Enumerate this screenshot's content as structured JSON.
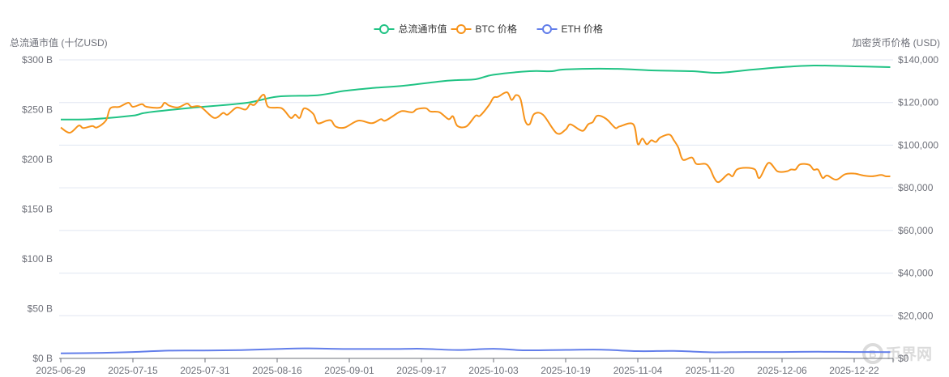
{
  "chart_data": {
    "type": "line",
    "legend": {
      "placement": "top-center"
    },
    "grid": true,
    "left_axis": {
      "title": "总流通市值 (十亿USD)",
      "range": [
        0,
        300
      ],
      "ticks": [
        "$0 B",
        "$50 B",
        "$100 B",
        "$150 B",
        "$200 B",
        "$250 B",
        "$300 B"
      ]
    },
    "right_axis": {
      "title": "加密货币价格 (USD)",
      "range": [
        0,
        140000
      ],
      "ticks": [
        "$0",
        "$20,000",
        "$40,000",
        "$60,000",
        "$80,000",
        "$100,000",
        "$120,000",
        "$140,000"
      ]
    },
    "x_axis": {
      "range": [
        "2025-06-29",
        "2025-12-30"
      ],
      "ticks": [
        "2025-06-29",
        "2025-07-15",
        "2025-07-31",
        "2025-08-16",
        "2025-09-01",
        "2025-09-17",
        "2025-10-03",
        "2025-10-19",
        "2025-11-04",
        "2025-11-20",
        "2025-12-06",
        "2025-12-22"
      ]
    },
    "series": [
      {
        "name": "总流通市值",
        "axis": "left",
        "color": "#20c384",
        "unit": "B USD",
        "points": [
          [
            "2025-06-29",
            240
          ],
          [
            "2025-07-06",
            240.5
          ],
          [
            "2025-07-15",
            244
          ],
          [
            "2025-07-18",
            247
          ],
          [
            "2025-07-28",
            251.8
          ],
          [
            "2025-08-09",
            256.7
          ],
          [
            "2025-08-16",
            263
          ],
          [
            "2025-08-25",
            264.5
          ],
          [
            "2025-08-31",
            268.9
          ],
          [
            "2025-09-07",
            272
          ],
          [
            "2025-09-13",
            274
          ],
          [
            "2025-09-21",
            278.3
          ],
          [
            "2025-09-25",
            279.7
          ],
          [
            "2025-09-29",
            280.5
          ],
          [
            "2025-10-03",
            285
          ],
          [
            "2025-10-11",
            288.6
          ],
          [
            "2025-10-16",
            288.6
          ],
          [
            "2025-10-19",
            290.5
          ],
          [
            "2025-10-30",
            291
          ],
          [
            "2025-11-07",
            289.4
          ],
          [
            "2025-11-16",
            288.6
          ],
          [
            "2025-11-22",
            287
          ],
          [
            "2025-11-29",
            290
          ],
          [
            "2025-12-06",
            292.7
          ],
          [
            "2025-12-13",
            294.3
          ],
          [
            "2025-12-22",
            293.5
          ],
          [
            "2025-12-30",
            292.7
          ]
        ]
      },
      {
        "name": "BTC 价格",
        "axis": "right",
        "color": "#f7931a",
        "unit": "USD",
        "points": [
          [
            "2025-06-29",
            108300
          ],
          [
            "2025-07-01",
            105800
          ],
          [
            "2025-07-03",
            109200
          ],
          [
            "2025-07-04",
            108000
          ],
          [
            "2025-07-06",
            109000
          ],
          [
            "2025-07-07",
            108300
          ],
          [
            "2025-07-09",
            111500
          ],
          [
            "2025-07-10",
            117300
          ],
          [
            "2025-07-12",
            118000
          ],
          [
            "2025-07-14",
            119900
          ],
          [
            "2025-07-15",
            118000
          ],
          [
            "2025-07-17",
            119200
          ],
          [
            "2025-07-18",
            118000
          ],
          [
            "2025-07-21",
            117600
          ],
          [
            "2025-07-22",
            119900
          ],
          [
            "2025-07-23",
            118600
          ],
          [
            "2025-07-25",
            117700
          ],
          [
            "2025-07-27",
            119500
          ],
          [
            "2025-07-28",
            118000
          ],
          [
            "2025-07-30",
            118000
          ],
          [
            "2025-08-02",
            112800
          ],
          [
            "2025-08-04",
            115100
          ],
          [
            "2025-08-05",
            114300
          ],
          [
            "2025-08-07",
            117600
          ],
          [
            "2025-08-09",
            116700
          ],
          [
            "2025-08-10",
            119200
          ],
          [
            "2025-08-11",
            119000
          ],
          [
            "2025-08-13",
            123700
          ],
          [
            "2025-08-14",
            118000
          ],
          [
            "2025-08-17",
            117300
          ],
          [
            "2025-08-19",
            112800
          ],
          [
            "2025-08-20",
            114300
          ],
          [
            "2025-08-21",
            112800
          ],
          [
            "2025-08-22",
            117300
          ],
          [
            "2025-08-24",
            114700
          ],
          [
            "2025-08-25",
            110300
          ],
          [
            "2025-08-27",
            111500
          ],
          [
            "2025-08-28",
            111500
          ],
          [
            "2025-08-29",
            108700
          ],
          [
            "2025-08-31",
            108300
          ],
          [
            "2025-09-03",
            111500
          ],
          [
            "2025-09-06",
            110300
          ],
          [
            "2025-09-08",
            112200
          ],
          [
            "2025-09-09",
            111500
          ],
          [
            "2025-09-12",
            115400
          ],
          [
            "2025-09-13",
            116000
          ],
          [
            "2025-09-15",
            115400
          ],
          [
            "2025-09-16",
            116900
          ],
          [
            "2025-09-18",
            117300
          ],
          [
            "2025-09-19",
            115800
          ],
          [
            "2025-09-21",
            115400
          ],
          [
            "2025-09-23",
            112200
          ],
          [
            "2025-09-24",
            113500
          ],
          [
            "2025-09-25",
            109000
          ],
          [
            "2025-09-27",
            108800
          ],
          [
            "2025-09-29",
            113800
          ],
          [
            "2025-09-30",
            113800
          ],
          [
            "2025-10-02",
            118800
          ],
          [
            "2025-10-03",
            122300
          ],
          [
            "2025-10-04",
            122700
          ],
          [
            "2025-10-06",
            124800
          ],
          [
            "2025-10-07",
            121200
          ],
          [
            "2025-10-08",
            123500
          ],
          [
            "2025-10-09",
            121500
          ],
          [
            "2025-10-10",
            111500
          ],
          [
            "2025-10-11",
            109800
          ],
          [
            "2025-10-12",
            114600
          ],
          [
            "2025-10-14",
            114200
          ],
          [
            "2025-10-17",
            105600
          ],
          [
            "2025-10-19",
            107300
          ],
          [
            "2025-10-20",
            109800
          ],
          [
            "2025-10-22",
            107300
          ],
          [
            "2025-10-23",
            106900
          ],
          [
            "2025-10-24",
            109800
          ],
          [
            "2025-10-25",
            110800
          ],
          [
            "2025-10-26",
            113800
          ],
          [
            "2025-10-28",
            112300
          ],
          [
            "2025-10-30",
            108100
          ],
          [
            "2025-10-31",
            108800
          ],
          [
            "2025-11-03",
            109800
          ],
          [
            "2025-11-04",
            100500
          ],
          [
            "2025-11-05",
            103100
          ],
          [
            "2025-11-06",
            100400
          ],
          [
            "2025-11-07",
            102300
          ],
          [
            "2025-11-08",
            101500
          ],
          [
            "2025-11-09",
            103600
          ],
          [
            "2025-11-11",
            105000
          ],
          [
            "2025-11-12",
            102300
          ],
          [
            "2025-11-13",
            98800
          ],
          [
            "2025-11-14",
            93200
          ],
          [
            "2025-11-16",
            94200
          ],
          [
            "2025-11-17",
            91200
          ],
          [
            "2025-11-19",
            91200
          ],
          [
            "2025-11-20",
            89000
          ],
          [
            "2025-11-21",
            84400
          ],
          [
            "2025-11-22",
            82700
          ],
          [
            "2025-11-24",
            86400
          ],
          [
            "2025-11-25",
            85400
          ],
          [
            "2025-11-26",
            88600
          ],
          [
            "2025-11-28",
            89400
          ],
          [
            "2025-11-30",
            88600
          ],
          [
            "2025-12-01",
            84600
          ],
          [
            "2025-12-03",
            91700
          ],
          [
            "2025-12-05",
            87700
          ],
          [
            "2025-12-07",
            87700
          ],
          [
            "2025-12-08",
            88600
          ],
          [
            "2025-12-09",
            88600
          ],
          [
            "2025-12-10",
            91000
          ],
          [
            "2025-12-12",
            90800
          ],
          [
            "2025-12-13",
            88500
          ],
          [
            "2025-12-14",
            88500
          ],
          [
            "2025-12-15",
            84600
          ],
          [
            "2025-12-16",
            85800
          ],
          [
            "2025-12-18",
            83800
          ],
          [
            "2025-12-20",
            86400
          ],
          [
            "2025-12-22",
            86700
          ],
          [
            "2025-12-24",
            85800
          ],
          [
            "2025-12-26",
            85400
          ],
          [
            "2025-12-28",
            86000
          ],
          [
            "2025-12-29",
            85400
          ],
          [
            "2025-12-30",
            85400
          ]
        ]
      },
      {
        "name": "ETH 价格",
        "axis": "right",
        "color": "#627eea",
        "unit": "USD",
        "points": [
          [
            "2025-06-29",
            2400
          ],
          [
            "2025-07-07",
            2550
          ],
          [
            "2025-07-15",
            3000
          ],
          [
            "2025-07-23",
            3650
          ],
          [
            "2025-07-31",
            3700
          ],
          [
            "2025-08-08",
            3900
          ],
          [
            "2025-08-16",
            4400
          ],
          [
            "2025-08-22",
            4700
          ],
          [
            "2025-09-01",
            4400
          ],
          [
            "2025-09-10",
            4400
          ],
          [
            "2025-09-17",
            4500
          ],
          [
            "2025-09-25",
            3950
          ],
          [
            "2025-10-03",
            4500
          ],
          [
            "2025-10-10",
            3800
          ],
          [
            "2025-10-19",
            4000
          ],
          [
            "2025-10-27",
            4100
          ],
          [
            "2025-11-04",
            3400
          ],
          [
            "2025-11-12",
            3500
          ],
          [
            "2025-11-20",
            2900
          ],
          [
            "2025-11-28",
            3000
          ],
          [
            "2025-12-06",
            3000
          ],
          [
            "2025-12-14",
            3100
          ],
          [
            "2025-12-22",
            3000
          ],
          [
            "2025-12-30",
            2950
          ]
        ]
      }
    ]
  },
  "watermark": "币界网"
}
